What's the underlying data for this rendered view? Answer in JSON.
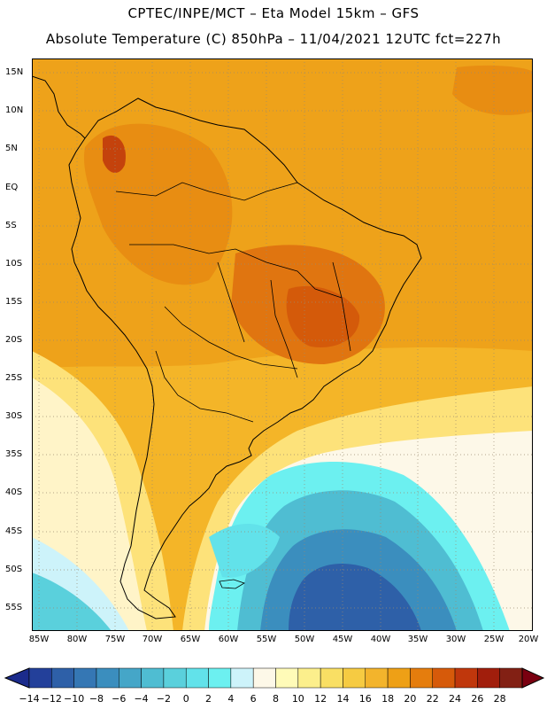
{
  "header": {
    "line1": "CPTEC/INPE/MCT –  Eta Model 15km – GFS",
    "line2": "Absolute Temperature (C) 850hPa – 11/04/2021 12UTC fct=227h"
  },
  "map": {
    "lat_labels": [
      "15N",
      "10N",
      "5N",
      "EQ",
      "5S",
      "10S",
      "15S",
      "20S",
      "25S",
      "30S",
      "35S",
      "40S",
      "45S",
      "50S",
      "55S"
    ],
    "lon_labels": [
      "85W",
      "80W",
      "75W",
      "70W",
      "65W",
      "60W",
      "55W",
      "50W",
      "45W",
      "40W",
      "35W",
      "30W",
      "25W",
      "20W"
    ]
  },
  "colorbar": {
    "labels": [
      "-14",
      "-12",
      "-10",
      "-8",
      "-6",
      "-4",
      "-2",
      "0",
      "2",
      "4",
      "6",
      "8",
      "10",
      "12",
      "14",
      "16",
      "18",
      "20",
      "22",
      "24",
      "26",
      "28"
    ],
    "under_color": "#1b2b8c",
    "over_color": "#7a0010",
    "colors": [
      "#23409a",
      "#2e60a8",
      "#3577b4",
      "#3b8ebe",
      "#45a6c8",
      "#4fbdd2",
      "#5ad0dc",
      "#62e2ea",
      "#6cf0f0",
      "#cdf3fa",
      "#fdf8e8",
      "#fffbb8",
      "#fcef8c",
      "#f9df64",
      "#f6cb42",
      "#f3b42c",
      "#eea016",
      "#e57d0d",
      "#d65a0a",
      "#c0370c",
      "#a11e0c",
      "#822014"
    ]
  }
}
